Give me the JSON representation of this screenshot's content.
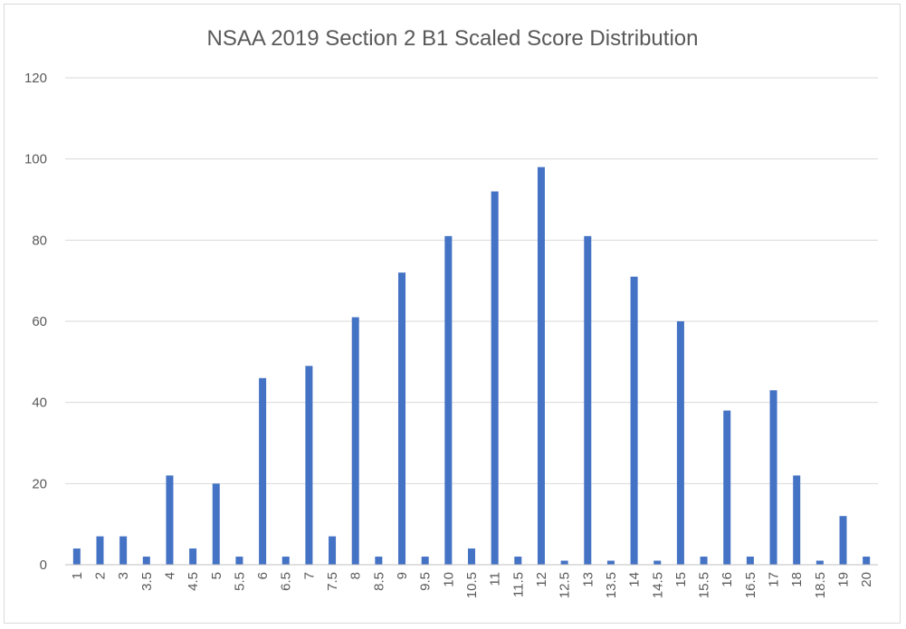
{
  "chart_data": {
    "type": "bar",
    "title": "NSAA 2019 Section 2 B1 Scaled Score Distribution",
    "xlabel": "",
    "ylabel": "",
    "ylim": [
      0,
      120
    ],
    "yticks": [
      0,
      20,
      40,
      60,
      80,
      100,
      120
    ],
    "grid": true,
    "legend": "none",
    "bar_color": "#4472c4",
    "categories": [
      "1",
      "2",
      "3",
      "3.5",
      "4",
      "4.5",
      "5",
      "5.5",
      "6",
      "6.5",
      "7",
      "7.5",
      "8",
      "8.5",
      "9",
      "9.5",
      "10",
      "10.5",
      "11",
      "11.5",
      "12",
      "12.5",
      "13",
      "13.5",
      "14",
      "14.5",
      "15",
      "15.5",
      "16",
      "16.5",
      "17",
      "18",
      "18.5",
      "19",
      "20"
    ],
    "values": [
      4,
      7,
      7,
      2,
      22,
      4,
      20,
      2,
      46,
      2,
      49,
      7,
      61,
      2,
      72,
      2,
      81,
      4,
      92,
      2,
      98,
      1,
      81,
      1,
      71,
      1,
      60,
      2,
      38,
      2,
      43,
      22,
      1,
      12,
      2
    ]
  }
}
